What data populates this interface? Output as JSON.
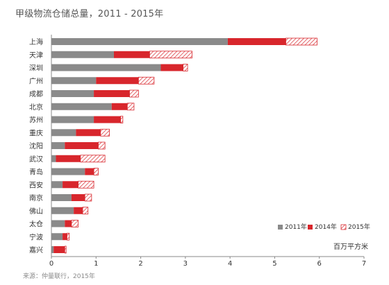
{
  "title": "甲级物流仓储总量，2011 - 2015年",
  "source": "来源：仲量联行，2015年",
  "colors": {
    "s2011": "#8a8a8a",
    "s2014": "#d8262c",
    "s2015_stripe": "#d8262c",
    "axis": "#888888"
  },
  "chart_data": {
    "type": "bar",
    "orientation": "horizontal",
    "stacked": true,
    "title": "甲级物流仓储总量，2011 - 2015年",
    "unit": "百万平方米",
    "categories": [
      "上海",
      "天津",
      "深圳",
      "广州",
      "成都",
      "北京",
      "苏州",
      "重庆",
      "沈阳",
      "武汉",
      "青岛",
      "西安",
      "南京",
      "佛山",
      "太仓",
      "宁波",
      "嘉兴"
    ],
    "series": [
      {
        "name": "2011年",
        "values": [
          3.95,
          1.4,
          2.45,
          1.0,
          0.95,
          1.35,
          0.95,
          0.55,
          0.3,
          0.1,
          0.75,
          0.25,
          0.45,
          0.5,
          0.3,
          0.25,
          0.05
        ]
      },
      {
        "name": "2014年",
        "values": [
          1.3,
          0.8,
          0.5,
          0.95,
          0.8,
          0.35,
          0.6,
          0.55,
          0.75,
          0.55,
          0.2,
          0.35,
          0.3,
          0.2,
          0.15,
          0.1,
          0.25
        ]
      },
      {
        "name": "2015年",
        "values": [
          0.7,
          0.95,
          0.1,
          0.35,
          0.2,
          0.15,
          0.05,
          0.2,
          0.15,
          0.55,
          0.1,
          0.35,
          0.15,
          0.12,
          0.15,
          0.05,
          0.03
        ]
      }
    ],
    "x_ticks": [
      0,
      1,
      2,
      3,
      4,
      5,
      6,
      7
    ],
    "xlim": [
      0,
      7
    ],
    "legend_position": "bottom-right",
    "grid": false
  }
}
